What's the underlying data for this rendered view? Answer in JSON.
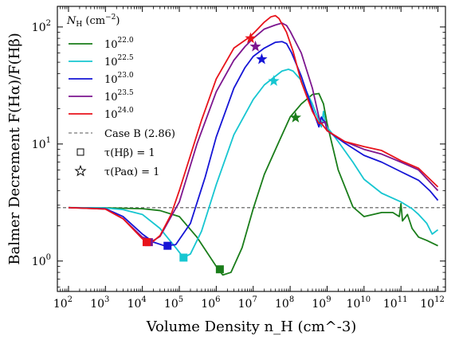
{
  "chart_data": {
    "type": "line",
    "xlabel": "Volume Density n_H (cm^-3)",
    "ylabel": "Balmer Decrement F(Hα)/F(Hβ)",
    "xscale": "log",
    "yscale": "log",
    "xlim": [
      50,
      1600000000000.0
    ],
    "ylim": [
      0.55,
      150
    ],
    "x_ticks": [
      {
        "value": 100.0,
        "base": "10",
        "exp": "2"
      },
      {
        "value": 1000.0,
        "base": "10",
        "exp": "3"
      },
      {
        "value": 10000.0,
        "base": "10",
        "exp": "4"
      },
      {
        "value": 100000.0,
        "base": "10",
        "exp": "5"
      },
      {
        "value": 1000000.0,
        "base": "10",
        "exp": "6"
      },
      {
        "value": 10000000.0,
        "base": "10",
        "exp": "7"
      },
      {
        "value": 100000000.0,
        "base": "10",
        "exp": "8"
      },
      {
        "value": 1000000000.0,
        "base": "10",
        "exp": "9"
      },
      {
        "value": 10000000000.0,
        "base": "10",
        "exp": "10"
      },
      {
        "value": 100000000000.0,
        "base": "10",
        "exp": "11"
      },
      {
        "value": 1000000000000.0,
        "base": "10",
        "exp": "12"
      }
    ],
    "y_ticks": [
      {
        "value": 1,
        "base": "10",
        "exp": "0"
      },
      {
        "value": 10,
        "base": "10",
        "exp": "1"
      },
      {
        "value": 100,
        "base": "10",
        "exp": "2"
      }
    ],
    "legend": {
      "position": "upper-left",
      "title_main": "N",
      "title_sub": "H",
      "title_unit": " (cm",
      "title_unit_exp": "−2",
      "title_close": ")",
      "case_b_label": "Case B (2.86)",
      "square_label": "τ(Hβ) = 1",
      "star_label": "τ(Paα) = 1"
    },
    "reference_line": {
      "name": "Case B (2.86)",
      "y": 2.86,
      "color": "#555555"
    },
    "series": [
      {
        "name": "10^22.0",
        "label_base": "10",
        "label_exp": "22.0",
        "color": "#1a7d1a",
        "x": [
          100.0,
          1000.0,
          10000.0,
          30000.0,
          100000.0,
          300000.0,
          1000000.0,
          1500000.0,
          2500000.0,
          5000000.0,
          10000000.0,
          20000000.0,
          50000000.0,
          100000000.0,
          200000000.0,
          400000000.0,
          600000000.0,
          800000000.0,
          1000000000.0,
          2000000000.0,
          5000000000.0,
          10000000000.0,
          30000000000.0,
          60000000000.0,
          90000000000.0,
          100000000000.0,
          110000000000.0,
          150000000000.0,
          200000000000.0,
          300000000000.0,
          500000000000.0,
          1000000000000.0
        ],
        "y": [
          2.86,
          2.85,
          2.8,
          2.7,
          2.4,
          1.6,
          0.9,
          0.76,
          0.8,
          1.3,
          2.8,
          5.5,
          10.5,
          17,
          22,
          26.5,
          27,
          22,
          15,
          6,
          2.9,
          2.4,
          2.6,
          2.6,
          2.4,
          3.1,
          2.2,
          2.5,
          1.9,
          1.6,
          1.5,
          1.35
        ],
        "square": {
          "x": 1250000.0,
          "y": 0.85
        },
        "star": {
          "x": 140000000.0,
          "y": 16.8
        }
      },
      {
        "name": "10^22.5",
        "label_base": "10",
        "label_exp": "22.5",
        "color": "#17c6d1",
        "x": [
          100.0,
          1000.0,
          3000.0,
          10000.0,
          30000.0,
          80000.0,
          130000.0,
          200000.0,
          400000.0,
          1000000.0,
          3000000.0,
          10000000.0,
          20000000.0,
          40000000.0,
          60000000.0,
          90000000.0,
          120000000.0,
          200000000.0,
          400000000.0,
          700000000.0,
          800000000.0,
          900000000.0,
          1000000000.0,
          2000000000.0,
          5000000000.0,
          10000000000.0,
          30000000000.0,
          100000000000.0,
          200000000000.0,
          300000000000.0,
          500000000000.0,
          700000000000.0,
          1000000000000.0
        ],
        "y": [
          2.86,
          2.84,
          2.75,
          2.5,
          1.9,
          1.3,
          1.07,
          1.15,
          1.8,
          4.5,
          12,
          24,
          32,
          38,
          42,
          43.5,
          42,
          35,
          22,
          14,
          19,
          15,
          14,
          10.5,
          7,
          5,
          3.8,
          3.2,
          2.8,
          2.5,
          2.1,
          1.7,
          1.85
        ],
        "square": {
          "x": 130000.0,
          "y": 1.07
        },
        "star": {
          "x": 36000000.0,
          "y": 34.5
        }
      },
      {
        "name": "10^23.0",
        "label_base": "10",
        "label_exp": "23.0",
        "color": "#1515d6",
        "x": [
          100.0,
          1000.0,
          3000.0,
          10000.0,
          20000.0,
          40000.0,
          80000.0,
          200000.0,
          500000.0,
          1000000.0,
          3000000.0,
          6000000.0,
          10000000.0,
          20000000.0,
          40000000.0,
          60000000.0,
          80000000.0,
          110000000.0,
          200000000.0,
          400000000.0,
          600000000.0,
          700000000.0,
          900000000.0,
          1000000000.0,
          3000000000.0,
          10000000000.0,
          30000000000.0,
          100000000000.0,
          300000000000.0,
          600000000000.0,
          1000000000000.0
        ],
        "y": [
          2.86,
          2.8,
          2.4,
          1.7,
          1.45,
          1.35,
          1.38,
          2.1,
          5.2,
          11.5,
          30,
          45,
          56,
          66,
          74,
          75,
          72,
          60,
          38,
          20,
          14,
          17,
          15,
          13,
          10.2,
          8,
          7,
          5.8,
          4.9,
          4,
          3.3
        ],
        "square": {
          "x": 48000.0,
          "y": 1.35
        },
        "star": {
          "x": 17000000.0,
          "y": 53
        }
      },
      {
        "name": "10^23.5",
        "label_base": "10",
        "label_exp": "23.5",
        "color": "#7d168f",
        "x": [
          100.0,
          1000.0,
          3000.0,
          10000.0,
          20000.0,
          30000.0,
          100000.0,
          300000.0,
          1000000.0,
          3000000.0,
          6000000.0,
          10000000.0,
          20000000.0,
          40000000.0,
          60000000.0,
          80000000.0,
          100000000.0,
          200000000.0,
          400000000.0,
          600000000.0,
          700000000.0,
          900000000.0,
          1000000000.0,
          3000000000.0,
          10000000000.0,
          30000000000.0,
          100000000000.0,
          300000000000.0,
          1000000000000.0
        ],
        "y": [
          2.86,
          2.78,
          2.3,
          1.6,
          1.5,
          1.62,
          3.2,
          10,
          28,
          52,
          68,
          80,
          96,
          104,
          108,
          103,
          92,
          60,
          30,
          17,
          15,
          15.5,
          13,
          10.5,
          9,
          8.2,
          7,
          6,
          4
        ],
        "square": {
          "x": 15000.0,
          "y": 1.45
        },
        "star": {
          "x": 11500000.0,
          "y": 68
        }
      },
      {
        "name": "10^24.0",
        "label_base": "10",
        "label_exp": "24.0",
        "color": "#e8131b",
        "x": [
          100.0,
          1000.0,
          3000.0,
          10000.0,
          15000.0,
          20000.0,
          30000.0,
          60000.0,
          100000.0,
          200000.0,
          400000.0,
          1000000.0,
          3000000.0,
          5000000.0,
          8000000.0,
          12000000.0,
          20000000.0,
          30000000.0,
          40000000.0,
          50000000.0,
          80000000.0,
          120000000.0,
          200000000.0,
          400000000.0,
          600000000.0,
          700000000.0,
          1000000000.0,
          3000000000.0,
          10000000000.0,
          30000000000.0,
          100000000000.0,
          300000000000.0,
          1000000000000.0
        ],
        "y": [
          2.86,
          2.78,
          2.3,
          1.55,
          1.45,
          1.48,
          1.65,
          2.5,
          4,
          8,
          16,
          36,
          66,
          74,
          82,
          93,
          110,
          122,
          125,
          118,
          90,
          62,
          34,
          19,
          15,
          15,
          13,
          10.5,
          9.5,
          8.8,
          7.2,
          6.2,
          4.3
        ],
        "square": {
          "x": 13000.0,
          "y": 1.45
        },
        "star": {
          "x": 8500000.0,
          "y": 80
        }
      }
    ]
  }
}
